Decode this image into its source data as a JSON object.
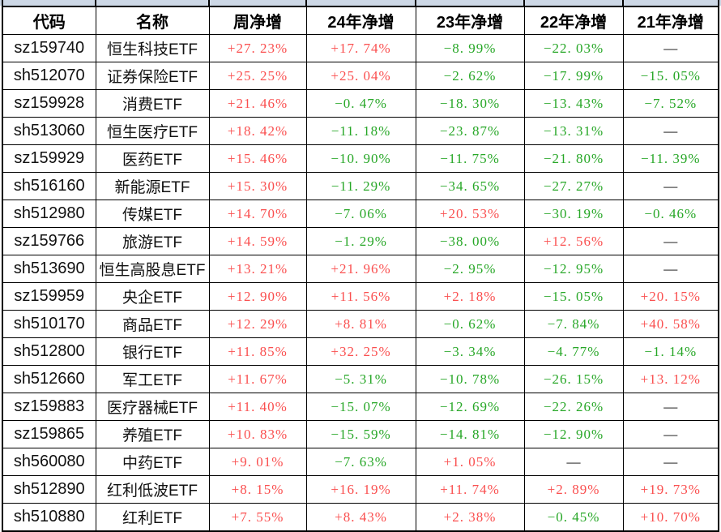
{
  "colors": {
    "positive_red": "#fa4f4f",
    "negative_green": "#27a727",
    "dash_black": "#000000",
    "grid_line": "#000000",
    "top_strip_bg": "#cdd8e6"
  },
  "chart_data": {
    "type": "table",
    "columns": [
      "代码",
      "名称",
      "周净增",
      "24年净增",
      "23年净增",
      "22年净增",
      "21年净增"
    ],
    "rows": [
      [
        "sz159740",
        "恒生科技ETF",
        "+27.23%",
        "+17.74%",
        "-8.99%",
        "-22.03%",
        "—"
      ],
      [
        "sh512070",
        "证券保险ETF",
        "+25.25%",
        "+25.04%",
        "-2.62%",
        "-17.99%",
        "-15.05%"
      ],
      [
        "sz159928",
        "消费ETF",
        "+21.46%",
        "-0.47%",
        "-18.30%",
        "-13.43%",
        "-7.52%"
      ],
      [
        "sh513060",
        "恒生医疗ETF",
        "+18.42%",
        "-11.18%",
        "-23.87%",
        "-13.31%",
        "—"
      ],
      [
        "sz159929",
        "医药ETF",
        "+15.46%",
        "-10.90%",
        "-11.75%",
        "-21.80%",
        "-11.39%"
      ],
      [
        "sh516160",
        "新能源ETF",
        "+15.30%",
        "-11.29%",
        "-34.65%",
        "-27.27%",
        "—"
      ],
      [
        "sh512980",
        "传媒ETF",
        "+14.70%",
        "-7.06%",
        "+20.53%",
        "-30.19%",
        "-0.46%"
      ],
      [
        "sz159766",
        "旅游ETF",
        "+14.59%",
        "-1.29%",
        "-38.00%",
        "+12.56%",
        "—"
      ],
      [
        "sh513690",
        "恒生高股息ETF",
        "+13.21%",
        "+21.96%",
        "-2.95%",
        "-12.95%",
        "—"
      ],
      [
        "sz159959",
        "央企ETF",
        "+12.90%",
        "+11.56%",
        "+2.18%",
        "-15.05%",
        "+20.15%"
      ],
      [
        "sh510170",
        "商品ETF",
        "+12.29%",
        "+8.81%",
        "-0.62%",
        "-7.84%",
        "+40.58%"
      ],
      [
        "sh512800",
        "银行ETF",
        "+11.85%",
        "+32.25%",
        "-3.34%",
        "-4.77%",
        "-1.14%"
      ],
      [
        "sh512660",
        "军工ETF",
        "+11.67%",
        "-5.31%",
        "-10.78%",
        "-26.15%",
        "+13.12%"
      ],
      [
        "sz159883",
        "医疗器械ETF",
        "+11.40%",
        "-15.07%",
        "-12.69%",
        "-22.26%",
        "—"
      ],
      [
        "sz159865",
        "养殖ETF",
        "+10.83%",
        "-15.59%",
        "-14.81%",
        "-12.90%",
        "—"
      ],
      [
        "sh560080",
        "中药ETF",
        "+9.01%",
        "-7.63%",
        "+1.05%",
        "—",
        "—"
      ],
      [
        "sh512890",
        "红利低波ETF",
        "+8.15%",
        "+16.19%",
        "+11.74%",
        "+2.89%",
        "+19.73%"
      ],
      [
        "sh510880",
        "红利ETF",
        "+7.55%",
        "+8.43%",
        "+2.38%",
        "-0.45%",
        "+10.70%"
      ]
    ]
  }
}
